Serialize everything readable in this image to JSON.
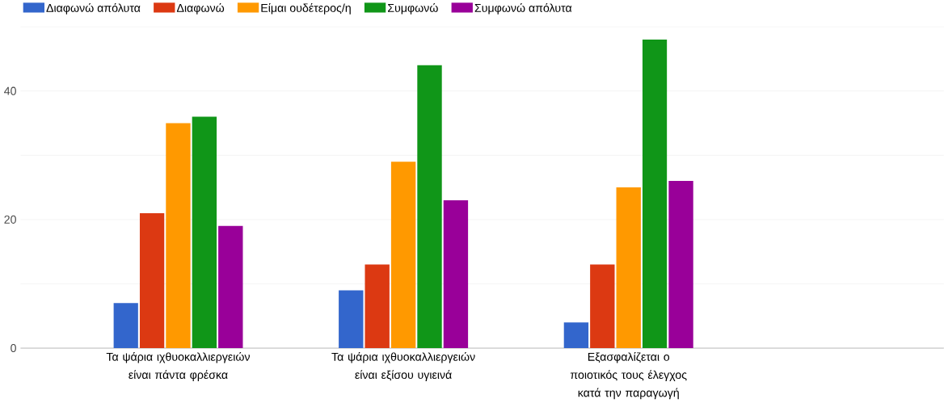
{
  "chart_data": {
    "type": "bar",
    "categories": [
      "Τα ψάρια ιχθυοκαλλιεργειών είναι πάντα φρέσκα",
      "Τα ψάρια ιχθυοκαλλιεργειών είναι εξίσου υγιεινά",
      "Εξασφαλίζεται ο ποιοτικός τους έλεγχος κατά την παραγωγή"
    ],
    "series": [
      {
        "name": "Διαφωνώ απόλυτα",
        "color": "#3366cc",
        "values": [
          7,
          9,
          4
        ]
      },
      {
        "name": "Διαφωνώ",
        "color": "#dc3912",
        "values": [
          21,
          13,
          13
        ]
      },
      {
        "name": "Είμαι ουδέτερος/η",
        "color": "#ff9900",
        "values": [
          35,
          29,
          25
        ]
      },
      {
        "name": "Συμφωνώ",
        "color": "#109618",
        "values": [
          36,
          44,
          48
        ]
      },
      {
        "name": "Συμφωνώ απόλυτα",
        "color": "#990099",
        "values": [
          19,
          23,
          26
        ]
      }
    ],
    "ylim": [
      0,
      50
    ],
    "yticks": [
      0,
      {
        "value": 10,
        "label": null
      },
      20,
      {
        "value": 30,
        "label": null
      },
      40,
      {
        "value": 50,
        "label": null
      }
    ],
    "grid": "y",
    "legend": "top"
  }
}
